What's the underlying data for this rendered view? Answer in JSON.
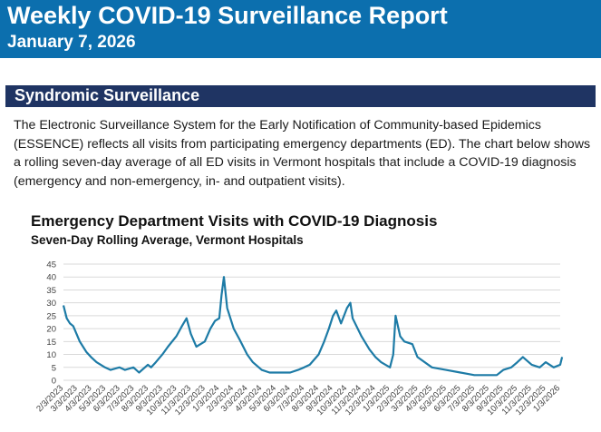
{
  "header": {
    "title": "Weekly COVID-19 Surveillance Report",
    "date": "January 7, 2026"
  },
  "colors": {
    "header_band": "#0c6fae",
    "section_bar": "#1f3463",
    "series_line": "#1d7ba6",
    "gridline": "#d9d9d9"
  },
  "section": {
    "title": "Syndromic Surveillance",
    "body": "The Electronic Surveillance System for the Early Notification of Community-based Epidemics (ESSENCE) reflects all visits from participating emergency departments (ED). The chart below shows a rolling seven-day average of all ED visits in Vermont hospitals that include a COVID-19 diagnosis (emergency and non-emergency, in- and outpatient visits)."
  },
  "chart_data": {
    "type": "line",
    "title": "Emergency Department Visits with COVID-19 Diagnosis",
    "subtitle": "Seven-Day Rolling Average, Vermont Hospitals",
    "xlabel": "",
    "ylabel": "",
    "ylim": [
      0,
      45
    ],
    "yticks": [
      0,
      5,
      10,
      15,
      20,
      25,
      30,
      35,
      40,
      45
    ],
    "grid": true,
    "x_tick_labels": [
      "2/3/2023",
      "3/3/2023",
      "4/3/2023",
      "5/3/2023",
      "6/3/2023",
      "7/3/2023",
      "8/3/2023",
      "9/3/2023",
      "10/3/2023",
      "11/3/2023",
      "12/3/2023",
      "1/3/2024",
      "2/3/2024",
      "3/3/2024",
      "4/3/2024",
      "5/3/2024",
      "6/3/2024",
      "7/3/2024",
      "8/3/2024",
      "9/3/2024",
      "10/3/2024",
      "11/3/2024",
      "12/3/2024",
      "1/3/2025",
      "2/3/2025",
      "3/3/2025",
      "4/3/2025",
      "5/3/2025",
      "6/3/2025",
      "7/3/2025",
      "8/3/2025",
      "9/3/2025",
      "10/3/2025",
      "11/3/2025",
      "12/3/2025",
      "1/3/2026"
    ],
    "x": [
      "2023-02-03",
      "2023-02-10",
      "2023-02-17",
      "2023-02-24",
      "2023-03-03",
      "2023-03-10",
      "2023-03-17",
      "2023-03-24",
      "2023-04-03",
      "2023-04-15",
      "2023-05-03",
      "2023-05-15",
      "2023-06-03",
      "2023-06-15",
      "2023-07-03",
      "2023-07-15",
      "2023-08-03",
      "2023-08-10",
      "2023-08-20",
      "2023-09-03",
      "2023-09-15",
      "2023-10-03",
      "2023-10-15",
      "2023-10-25",
      "2023-11-03",
      "2023-11-15",
      "2023-12-03",
      "2023-12-15",
      "2023-12-25",
      "2024-01-03",
      "2024-01-08",
      "2024-01-13",
      "2024-01-20",
      "2024-02-03",
      "2024-02-15",
      "2024-03-03",
      "2024-03-15",
      "2024-04-03",
      "2024-04-20",
      "2024-05-03",
      "2024-06-03",
      "2024-06-20",
      "2024-07-03",
      "2024-07-15",
      "2024-08-03",
      "2024-08-15",
      "2024-08-25",
      "2024-09-03",
      "2024-09-10",
      "2024-09-20",
      "2024-10-03",
      "2024-10-10",
      "2024-10-15",
      "2024-11-03",
      "2024-11-20",
      "2024-12-03",
      "2024-12-15",
      "2025-01-03",
      "2025-01-10",
      "2025-01-15",
      "2025-01-25",
      "2025-02-03",
      "2025-02-20",
      "2025-03-03",
      "2025-04-03",
      "2025-05-03",
      "2025-06-03",
      "2025-07-03",
      "2025-08-03",
      "2025-08-20",
      "2025-09-03",
      "2025-09-20",
      "2025-10-03",
      "2025-10-15",
      "2025-11-03",
      "2025-11-20",
      "2025-12-03",
      "2025-12-20",
      "2026-01-03",
      "2026-01-07"
    ],
    "series": [
      {
        "values": [
          29,
          24,
          22,
          21,
          18,
          15,
          13,
          11,
          9,
          7,
          5,
          4,
          5,
          4,
          5,
          3,
          6,
          5,
          7,
          10,
          13,
          17,
          21,
          24,
          18,
          13,
          15,
          20,
          23,
          24,
          33,
          40,
          28,
          20,
          16,
          10,
          7,
          4,
          3,
          3,
          3,
          4,
          5,
          6,
          10,
          15,
          20,
          25,
          27,
          22,
          28,
          30,
          24,
          17,
          12,
          9,
          7,
          5,
          10,
          25,
          17,
          15,
          14,
          9,
          5,
          4,
          3,
          2,
          2,
          2,
          4,
          5,
          7,
          9,
          6,
          5,
          7,
          5,
          6,
          9
        ]
      }
    ]
  }
}
